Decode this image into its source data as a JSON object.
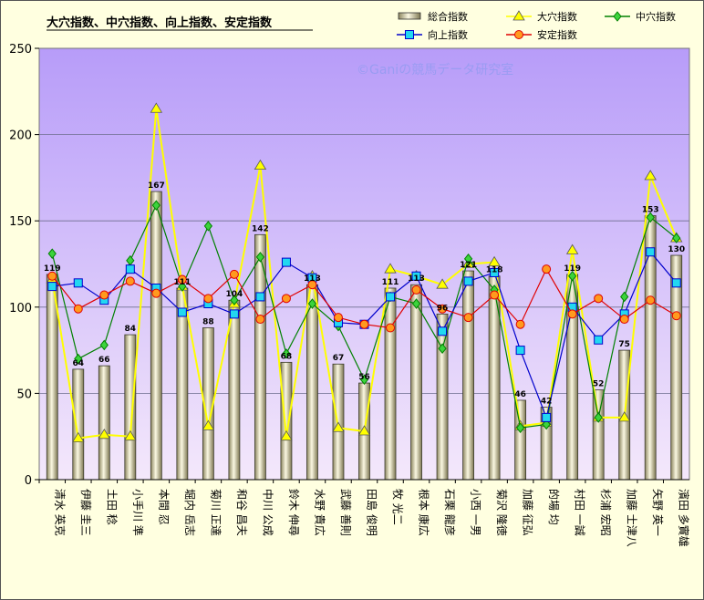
{
  "chart_data": {
    "type": "bar",
    "title": "大穴指数、中穴指数、向上指数、安定指数",
    "watermark": "©Ganiの競馬データ研究室",
    "ylim": [
      0,
      250
    ],
    "yticks": [
      "0",
      "50",
      "100",
      "150",
      "200",
      "250"
    ],
    "grid": true,
    "legend": "top-right",
    "categories": [
      "清水 英克",
      "伊藤 圭三",
      "土田 稔",
      "小手川 準",
      "本間 忍",
      "堀内 岳志",
      "菊川 正達",
      "和谷 昌夫",
      "中川 公成",
      "鈴木 伸尋",
      "水野 貴広",
      "武藤 善則",
      "田島 俊明",
      "牧 光二",
      "根本 康広",
      "石栗 龍彦",
      "小西 一男",
      "菊沢 隆徳",
      "加藤 征弘",
      "的場 均",
      "村田 一誠",
      "杉浦 宏昭",
      "加藤 士津八",
      "矢野 英一",
      "濱田 多實雄"
    ],
    "series": [
      {
        "name": "総合指数",
        "kind": "bar",
        "color": "#ece6b8",
        "values": [
          119,
          64,
          66,
          84,
          167,
          111,
          88,
          104,
          142,
          68,
          113,
          67,
          56,
          111,
          113,
          96,
          121,
          118,
          46,
          42,
          119,
          52,
          75,
          153,
          130
        ]
      },
      {
        "name": "大穴指数",
        "kind": "line",
        "color": "#ffff00",
        "marker": "triangle",
        "values": [
          116,
          24,
          26,
          25,
          215,
          112,
          31,
          102,
          182,
          25,
          118,
          30,
          28,
          122,
          118,
          113,
          125,
          126,
          31,
          33,
          133,
          36,
          36,
          176,
          140
        ]
      },
      {
        "name": "中穴指数",
        "kind": "line",
        "color": "#008000",
        "marker": "diamond",
        "values": [
          131,
          70,
          78,
          127,
          159,
          112,
          147,
          104,
          129,
          73,
          102,
          89,
          58,
          106,
          102,
          76,
          128,
          110,
          30,
          32,
          118,
          36,
          106,
          152,
          140
        ]
      },
      {
        "name": "向上指数",
        "kind": "line",
        "color": "#0000cc",
        "marker": "square",
        "values": [
          112,
          114,
          104,
          122,
          111,
          97,
          102,
          96,
          106,
          126,
          117,
          91,
          90,
          106,
          118,
          86,
          115,
          120,
          75,
          36,
          100,
          81,
          96,
          132,
          114
        ]
      },
      {
        "name": "安定指数",
        "kind": "line",
        "color": "#e00000",
        "marker": "circle",
        "values": [
          118,
          99,
          107,
          115,
          108,
          116,
          105,
          119,
          93,
          105,
          113,
          94,
          90,
          88,
          110,
          99,
          94,
          107,
          90,
          122,
          96,
          105,
          93,
          104,
          95
        ]
      }
    ]
  }
}
